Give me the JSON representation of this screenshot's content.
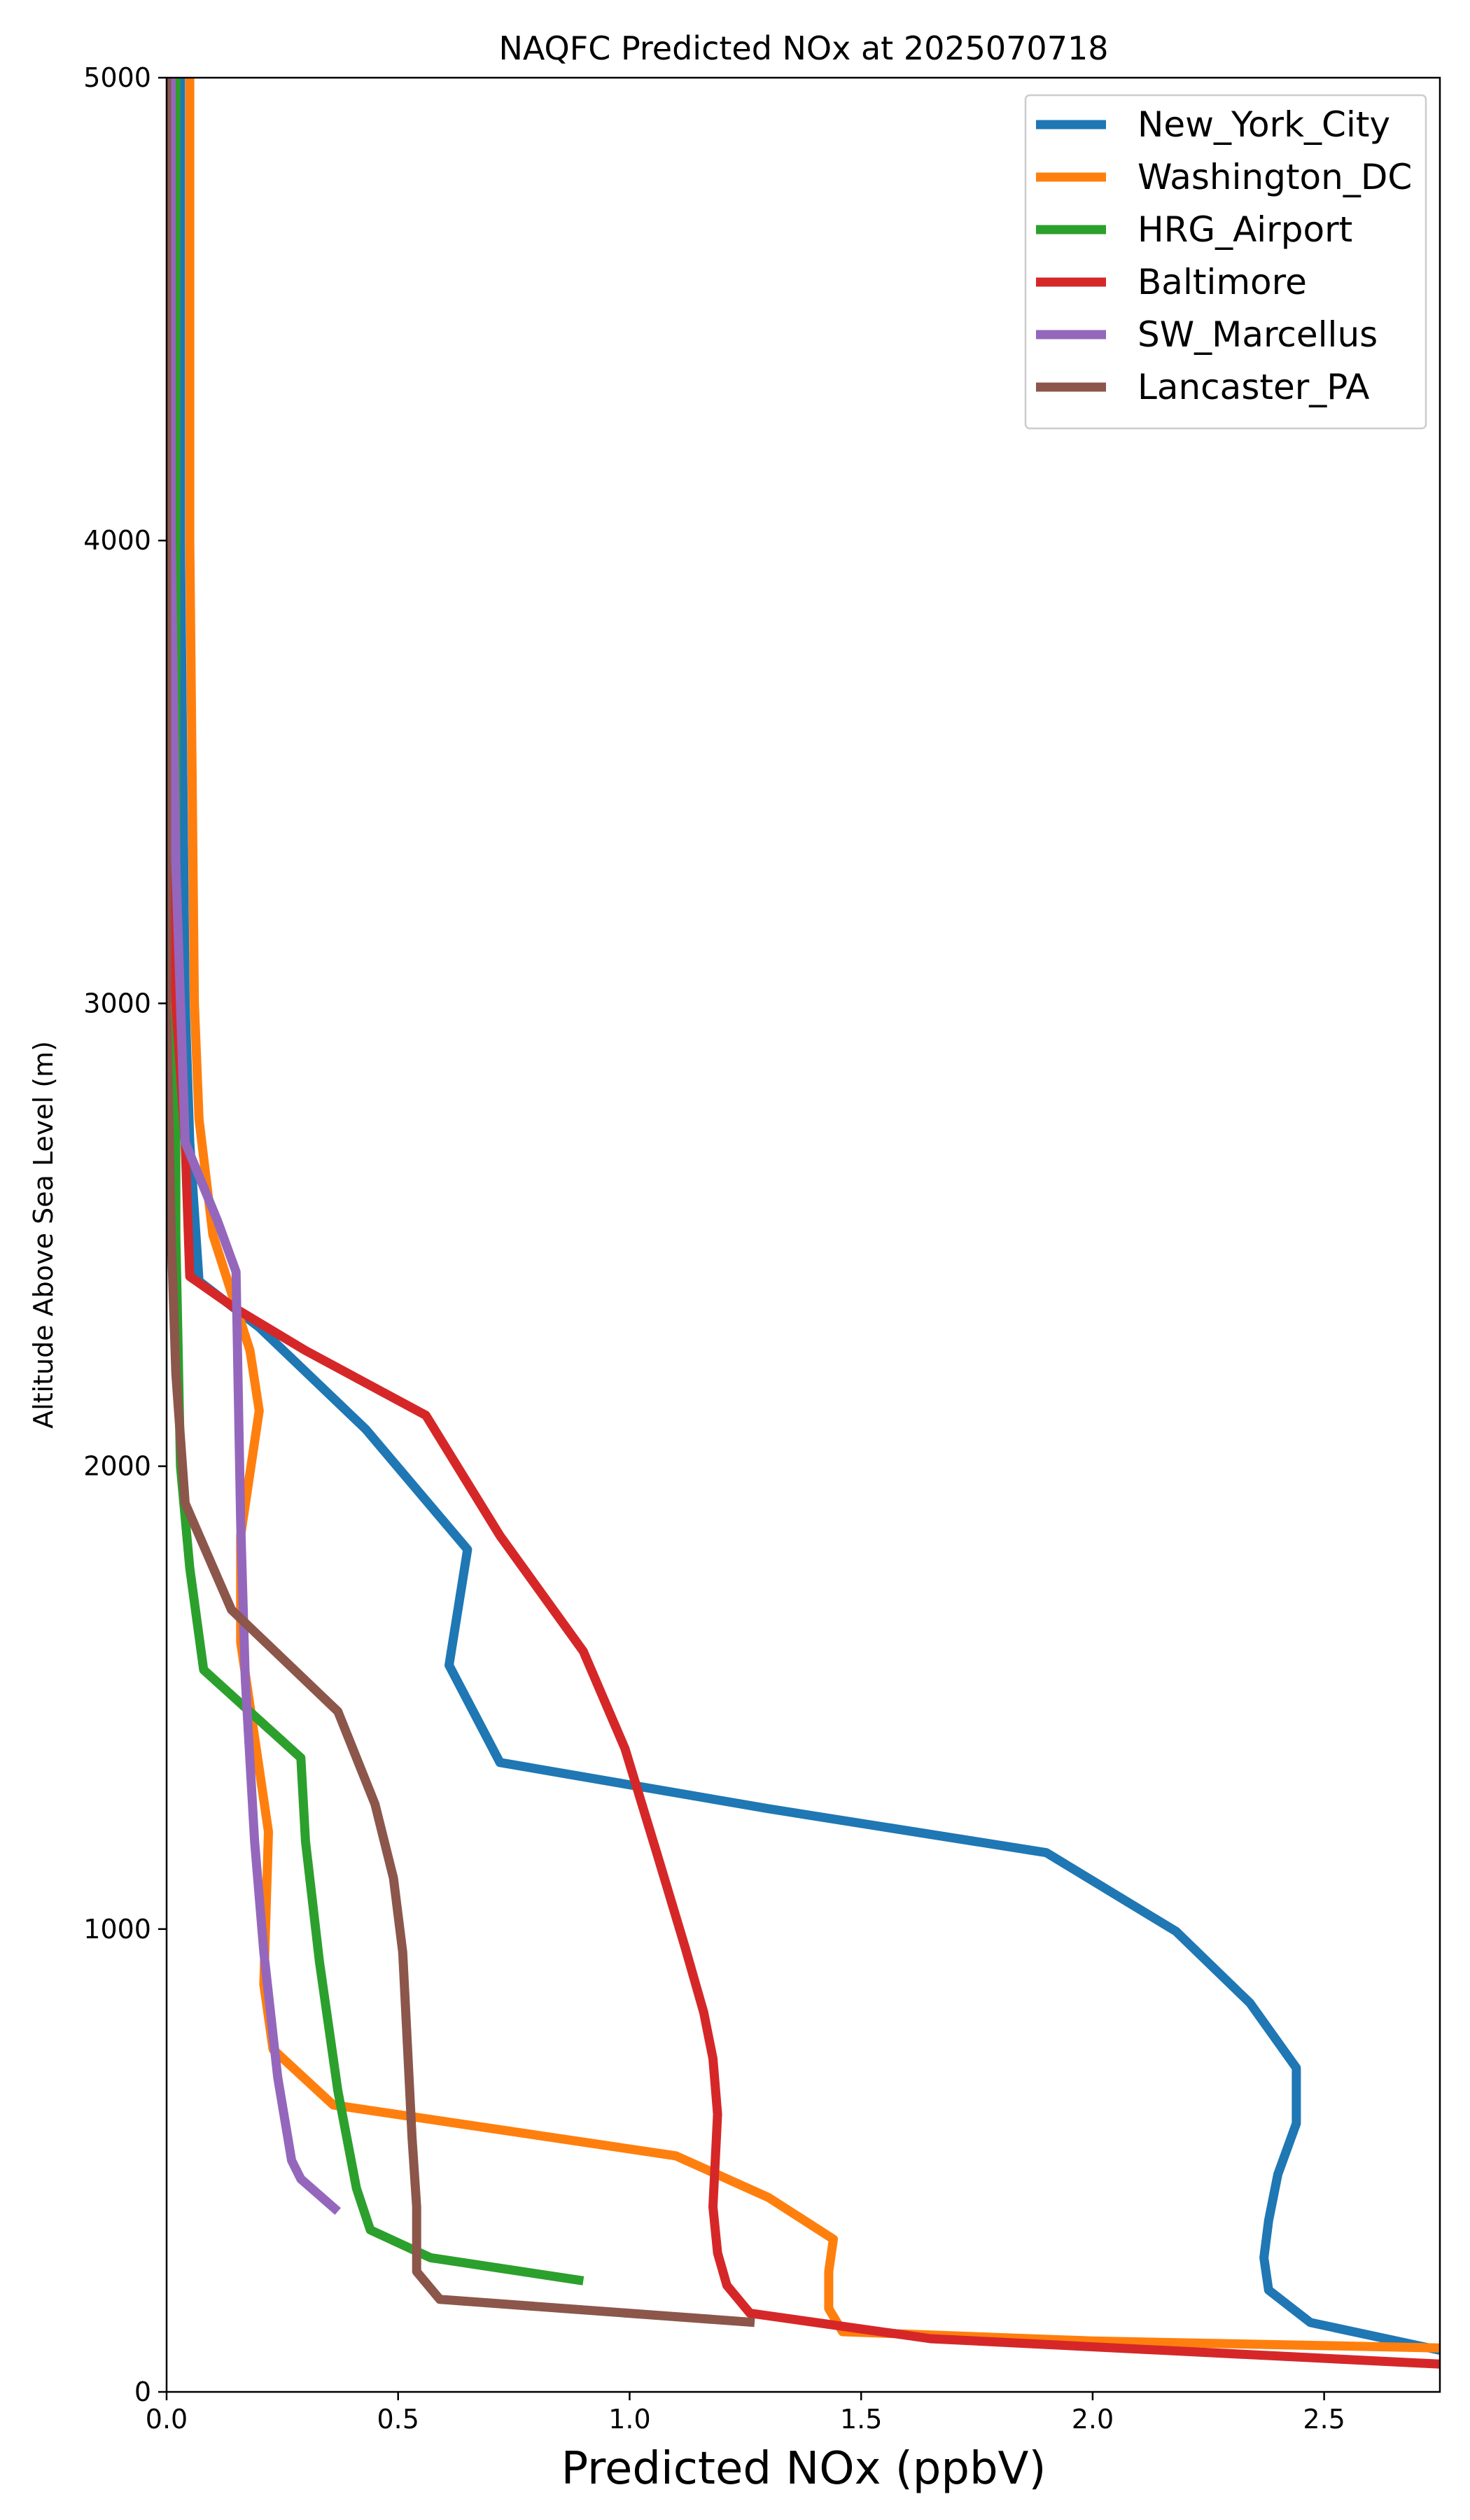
{
  "chart_data": {
    "type": "line",
    "title": "NAQFC Predicted NOx at 2025070718",
    "xlabel": "Predicted NOx (ppbV)",
    "ylabel": "Altitude Above Sea Level (m)",
    "xlim": [
      0,
      2.75
    ],
    "ylim": [
      0,
      5000
    ],
    "xticks": [
      0.0,
      0.5,
      1.0,
      1.5,
      2.0,
      2.5
    ],
    "xtick_labels": [
      "0.0",
      "0.5",
      "1.0",
      "1.5",
      "2.0",
      "2.5"
    ],
    "yticks": [
      0,
      1000,
      2000,
      3000,
      4000,
      5000
    ],
    "ytick_labels": [
      "0",
      "1000",
      "2000",
      "3000",
      "4000",
      "5000"
    ],
    "grid": false,
    "legend_position": "top-right",
    "series": [
      {
        "name": "New_York_City",
        "color": "#1f77b4",
        "points": [
          [
            0.03,
            5000
          ],
          [
            0.03,
            4000
          ],
          [
            0.04,
            3000
          ],
          [
            0.05,
            2700
          ],
          [
            0.07,
            2400
          ],
          [
            0.2,
            2300
          ],
          [
            0.43,
            2080
          ],
          [
            0.65,
            1820
          ],
          [
            0.61,
            1570
          ],
          [
            0.72,
            1360
          ],
          [
            1.3,
            1260
          ],
          [
            1.9,
            1165
          ],
          [
            2.18,
            995
          ],
          [
            2.34,
            840
          ],
          [
            2.44,
            700
          ],
          [
            2.44,
            580
          ],
          [
            2.4,
            470
          ],
          [
            2.38,
            370
          ],
          [
            2.37,
            290
          ],
          [
            2.38,
            220
          ],
          [
            2.47,
            150
          ],
          [
            2.75,
            90
          ]
        ]
      },
      {
        "name": "Washington_DC",
        "color": "#ff7f0e",
        "points": [
          [
            0.05,
            5000
          ],
          [
            0.05,
            4000
          ],
          [
            0.06,
            3000
          ],
          [
            0.07,
            2750
          ],
          [
            0.1,
            2500
          ],
          [
            0.18,
            2250
          ],
          [
            0.2,
            2120
          ],
          [
            0.16,
            1850
          ],
          [
            0.16,
            1620
          ],
          [
            0.22,
            1210
          ],
          [
            0.21,
            880
          ],
          [
            0.23,
            740
          ],
          [
            0.36,
            620
          ],
          [
            1.1,
            510
          ],
          [
            1.3,
            420
          ],
          [
            1.44,
            330
          ],
          [
            1.43,
            260
          ],
          [
            1.43,
            180
          ],
          [
            1.46,
            130
          ],
          [
            2.0,
            110
          ],
          [
            2.75,
            95
          ]
        ]
      },
      {
        "name": "HRG_Airport",
        "color": "#2ca02c",
        "points": [
          [
            0.02,
            5000
          ],
          [
            0.02,
            4000
          ],
          [
            0.02,
            3000
          ],
          [
            0.02,
            2500
          ],
          [
            0.03,
            2000
          ],
          [
            0.05,
            1780
          ],
          [
            0.08,
            1560
          ],
          [
            0.29,
            1370
          ],
          [
            0.3,
            1190
          ],
          [
            0.33,
            930
          ],
          [
            0.37,
            650
          ],
          [
            0.41,
            440
          ],
          [
            0.44,
            350
          ],
          [
            0.57,
            290
          ],
          [
            0.9,
            240
          ]
        ]
      },
      {
        "name": "Baltimore",
        "color": "#d62728",
        "points": [
          [
            0.01,
            5000
          ],
          [
            0.01,
            4000
          ],
          [
            0.02,
            3000
          ],
          [
            0.04,
            2700
          ],
          [
            0.05,
            2410
          ],
          [
            0.15,
            2340
          ],
          [
            0.3,
            2250
          ],
          [
            0.56,
            2110
          ],
          [
            0.72,
            1850
          ],
          [
            0.9,
            1600
          ],
          [
            0.99,
            1390
          ],
          [
            1.06,
            1160
          ],
          [
            1.12,
            960
          ],
          [
            1.16,
            820
          ],
          [
            1.18,
            720
          ],
          [
            1.19,
            600
          ],
          [
            1.18,
            400
          ],
          [
            1.19,
            300
          ],
          [
            1.21,
            230
          ],
          [
            1.26,
            170
          ],
          [
            1.65,
            115
          ],
          [
            2.75,
            60
          ]
        ]
      },
      {
        "name": "SW_Marcellus",
        "color": "#9467bd",
        "points": [
          [
            0.01,
            5000
          ],
          [
            0.01,
            4000
          ],
          [
            0.02,
            3300
          ],
          [
            0.04,
            2700
          ],
          [
            0.11,
            2530
          ],
          [
            0.15,
            2420
          ],
          [
            0.16,
            1880
          ],
          [
            0.17,
            1540
          ],
          [
            0.19,
            1190
          ],
          [
            0.21,
            950
          ],
          [
            0.24,
            680
          ],
          [
            0.27,
            500
          ],
          [
            0.29,
            460
          ],
          [
            0.37,
            390
          ]
        ]
      },
      {
        "name": "Lancaster_PA",
        "color": "#8c564b",
        "points": [
          [
            0.0,
            5000
          ],
          [
            0.0,
            4000
          ],
          [
            0.0,
            3000
          ],
          [
            0.01,
            2500
          ],
          [
            0.02,
            2200
          ],
          [
            0.04,
            1920
          ],
          [
            0.14,
            1690
          ],
          [
            0.37,
            1470
          ],
          [
            0.45,
            1270
          ],
          [
            0.49,
            1110
          ],
          [
            0.51,
            950
          ],
          [
            0.52,
            750
          ],
          [
            0.53,
            550
          ],
          [
            0.54,
            400
          ],
          [
            0.54,
            260
          ],
          [
            0.59,
            200
          ],
          [
            1.27,
            150
          ]
        ]
      }
    ]
  }
}
